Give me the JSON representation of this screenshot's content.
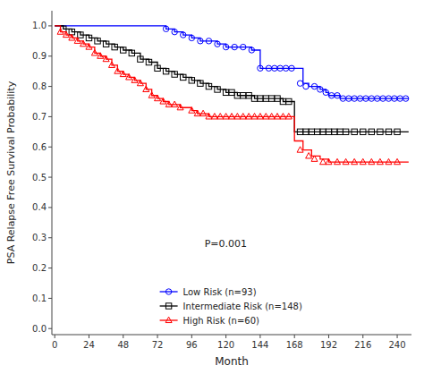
{
  "chart_data": {
    "type": "step",
    "xlabel": "Month",
    "ylabel": "PSA Relapse Free Survival Probability",
    "xlim": [
      -2,
      250
    ],
    "ylim": [
      -0.02,
      1.05
    ],
    "xticks": [
      0,
      24,
      48,
      72,
      96,
      120,
      144,
      168,
      192,
      216,
      240
    ],
    "yticks": [
      {
        "value": 0.0,
        "label": "0.0"
      },
      {
        "value": 0.1,
        "label": "0.1"
      },
      {
        "value": 0.2,
        "label": "0.2"
      },
      {
        "value": 0.3,
        "label": "0.3"
      },
      {
        "value": 0.4,
        "label": "0.4"
      },
      {
        "value": 0.5,
        "label": "0.5"
      },
      {
        "value": 0.6,
        "label": "0.6"
      },
      {
        "value": 0.7,
        "label": "0.7"
      },
      {
        "value": 0.8,
        "label": "0.8"
      },
      {
        "value": 0.9,
        "label": "0.9"
      },
      {
        "value": 1.0,
        "label": "1.0"
      }
    ],
    "grid": false,
    "legend": "lower left",
    "annotations": [
      {
        "text": "P=0.001",
        "x": 105,
        "y": 0.27
      }
    ],
    "series": [
      {
        "name": "Low Risk (n=93)",
        "color": "blue",
        "marker": "circle",
        "x": [
          0,
          72,
          78,
          84,
          90,
          96,
          102,
          108,
          114,
          120,
          126,
          132,
          138,
          144,
          148,
          150,
          156,
          162,
          168,
          174,
          178,
          180,
          184,
          186,
          190,
          192,
          196,
          200,
          206,
          210,
          212,
          218,
          224,
          230,
          236,
          240,
          248
        ],
        "values": [
          1.0,
          1.0,
          0.99,
          0.98,
          0.97,
          0.96,
          0.95,
          0.95,
          0.94,
          0.93,
          0.93,
          0.93,
          0.92,
          0.86,
          0.86,
          0.86,
          0.86,
          0.86,
          0.86,
          0.81,
          0.8,
          0.8,
          0.8,
          0.79,
          0.78,
          0.77,
          0.77,
          0.76,
          0.76,
          0.76,
          0.76,
          0.76,
          0.76,
          0.76,
          0.76,
          0.76,
          0.76
        ],
        "censor_x": [
          78,
          84,
          90,
          96,
          102,
          108,
          114,
          120,
          126,
          132,
          138,
          144,
          150,
          154,
          158,
          162,
          166,
          172,
          176,
          182,
          186,
          190,
          194,
          198,
          202,
          206,
          210,
          214,
          218,
          222,
          226,
          230,
          234,
          238,
          242,
          246
        ],
        "censor_values": [
          0.99,
          0.98,
          0.97,
          0.96,
          0.95,
          0.95,
          0.94,
          0.93,
          0.93,
          0.93,
          0.92,
          0.86,
          0.86,
          0.86,
          0.86,
          0.86,
          0.86,
          0.81,
          0.8,
          0.8,
          0.79,
          0.78,
          0.77,
          0.77,
          0.76,
          0.76,
          0.76,
          0.76,
          0.76,
          0.76,
          0.76,
          0.76,
          0.76,
          0.76,
          0.76,
          0.76
        ]
      },
      {
        "name": "Intermediate Risk (n=148)",
        "color": "black",
        "marker": "square",
        "x": [
          0,
          6,
          12,
          18,
          24,
          30,
          36,
          42,
          48,
          54,
          60,
          66,
          72,
          78,
          84,
          90,
          96,
          102,
          108,
          114,
          120,
          124,
          128,
          132,
          136,
          140,
          144,
          148,
          152,
          156,
          160,
          164,
          168,
          172,
          176,
          180,
          184,
          188,
          192,
          196,
          200,
          204,
          210,
          216,
          222,
          228,
          234,
          240,
          248
        ],
        "values": [
          1.0,
          0.99,
          0.98,
          0.97,
          0.96,
          0.95,
          0.94,
          0.93,
          0.92,
          0.91,
          0.89,
          0.88,
          0.86,
          0.85,
          0.84,
          0.83,
          0.82,
          0.81,
          0.8,
          0.79,
          0.78,
          0.78,
          0.77,
          0.77,
          0.77,
          0.76,
          0.76,
          0.76,
          0.76,
          0.76,
          0.75,
          0.75,
          0.65,
          0.65,
          0.65,
          0.65,
          0.65,
          0.65,
          0.65,
          0.65,
          0.65,
          0.65,
          0.65,
          0.65,
          0.65,
          0.65,
          0.65,
          0.65,
          0.65
        ],
        "censor_x": [
          6,
          12,
          18,
          24,
          30,
          36,
          42,
          48,
          54,
          60,
          66,
          72,
          78,
          84,
          90,
          96,
          102,
          108,
          114,
          120,
          124,
          128,
          132,
          136,
          140,
          144,
          148,
          152,
          156,
          160,
          164,
          172,
          176,
          180,
          184,
          188,
          192,
          196,
          200,
          204,
          210,
          216,
          222,
          228,
          234,
          240
        ],
        "censor_values": [
          0.99,
          0.98,
          0.97,
          0.96,
          0.95,
          0.94,
          0.93,
          0.92,
          0.91,
          0.89,
          0.88,
          0.86,
          0.85,
          0.84,
          0.83,
          0.82,
          0.81,
          0.8,
          0.79,
          0.78,
          0.78,
          0.77,
          0.77,
          0.77,
          0.76,
          0.76,
          0.76,
          0.76,
          0.76,
          0.75,
          0.75,
          0.65,
          0.65,
          0.65,
          0.65,
          0.65,
          0.65,
          0.65,
          0.65,
          0.65,
          0.65,
          0.65,
          0.65,
          0.65,
          0.65,
          0.65
        ]
      },
      {
        "name": "High Risk (n=60)",
        "color": "red",
        "marker": "triangle",
        "x": [
          0,
          4,
          8,
          12,
          16,
          20,
          24,
          28,
          32,
          36,
          40,
          44,
          48,
          52,
          56,
          60,
          64,
          68,
          72,
          76,
          80,
          84,
          88,
          92,
          96,
          100,
          104,
          108,
          112,
          116,
          120,
          124,
          128,
          132,
          136,
          140,
          144,
          148,
          152,
          156,
          160,
          164,
          168,
          174,
          180,
          186,
          192,
          198,
          204,
          210,
          216,
          222,
          228,
          234,
          240,
          248
        ],
        "values": [
          1.0,
          0.98,
          0.97,
          0.96,
          0.95,
          0.94,
          0.93,
          0.91,
          0.9,
          0.89,
          0.87,
          0.85,
          0.84,
          0.83,
          0.82,
          0.81,
          0.79,
          0.77,
          0.76,
          0.75,
          0.74,
          0.74,
          0.73,
          0.73,
          0.72,
          0.71,
          0.71,
          0.7,
          0.7,
          0.7,
          0.7,
          0.7,
          0.7,
          0.7,
          0.7,
          0.7,
          0.7,
          0.7,
          0.7,
          0.7,
          0.7,
          0.7,
          0.62,
          0.59,
          0.57,
          0.56,
          0.55,
          0.55,
          0.55,
          0.55,
          0.55,
          0.55,
          0.55,
          0.55,
          0.55,
          0.55
        ],
        "censor_x": [
          4,
          8,
          12,
          16,
          20,
          24,
          28,
          32,
          36,
          40,
          44,
          48,
          52,
          56,
          60,
          64,
          68,
          72,
          76,
          80,
          84,
          88,
          96,
          100,
          104,
          108,
          112,
          116,
          120,
          124,
          128,
          132,
          136,
          140,
          144,
          148,
          152,
          156,
          160,
          164,
          172,
          178,
          182,
          188,
          192,
          198,
          204,
          210,
          216,
          222,
          228,
          234,
          240
        ],
        "censor_values": [
          0.98,
          0.97,
          0.96,
          0.95,
          0.94,
          0.93,
          0.91,
          0.9,
          0.89,
          0.87,
          0.85,
          0.84,
          0.83,
          0.82,
          0.81,
          0.79,
          0.77,
          0.76,
          0.75,
          0.74,
          0.74,
          0.73,
          0.72,
          0.71,
          0.71,
          0.7,
          0.7,
          0.7,
          0.7,
          0.7,
          0.7,
          0.7,
          0.7,
          0.7,
          0.7,
          0.7,
          0.7,
          0.7,
          0.7,
          0.7,
          0.59,
          0.57,
          0.56,
          0.55,
          0.55,
          0.55,
          0.55,
          0.55,
          0.55,
          0.55,
          0.55,
          0.55,
          0.55
        ]
      }
    ]
  }
}
